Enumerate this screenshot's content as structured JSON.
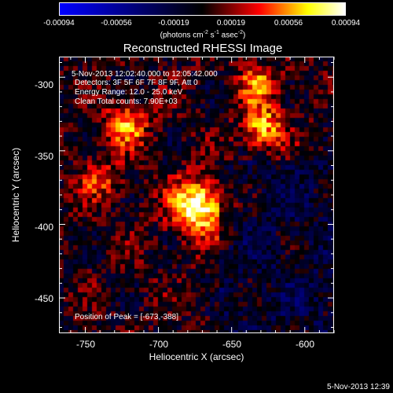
{
  "colorbar": {
    "tick_labels": [
      "-0.00094",
      "-0.00056",
      "-0.00019",
      "0.00019",
      "0.00056",
      "0.00094"
    ],
    "units_main": "(photons cm",
    "units_exp1": "-2",
    "units_mid1": " s",
    "units_exp2": "-1",
    "units_mid2": " asec",
    "units_exp3": "-2",
    "units_end": ")"
  },
  "chart_data": {
    "type": "heatmap",
    "title": "Reconstructed RHESSI Image",
    "xlabel": "Heliocentric X (arcsec)",
    "ylabel": "Heliocentric Y (arcsec)",
    "x_ticks": [
      "-750",
      "-700",
      "-650",
      "-600"
    ],
    "y_ticks": [
      "-300",
      "-350",
      "-400",
      "-450"
    ],
    "xlim": [
      -768,
      -580
    ],
    "ylim": [
      -474,
      -286
    ],
    "colorbar_range": [
      -0.00094,
      0.00094
    ],
    "colormap": [
      "#0000ff",
      "#000000",
      "#ff0000",
      "#ffff00",
      "#ffffff"
    ],
    "peak_position": [
      -673,
      -388
    ],
    "sources": [
      {
        "x": -673,
        "y": -388,
        "amplitude": 0.00094
      },
      {
        "x": -722,
        "y": -333,
        "amplitude": 0.00062
      },
      {
        "x": -629,
        "y": -334,
        "amplitude": 0.00066
      },
      {
        "x": -632,
        "y": -305,
        "amplitude": 0.00045
      },
      {
        "x": -740,
        "y": -370,
        "amplitude": 0.00035
      }
    ]
  },
  "info": {
    "time_range": "5-Nov-2013 12:02:40.000 to 12:05:42.000",
    "detectors": "Detectors: 3F 5F 6F 7F 8F 9F, Att 0",
    "energy": "Energy Range: 12.0 - 25.0 keV",
    "clean": "Clean    Total counts: 7.90E+03",
    "peak": "Position of Peak = [-673,-388]"
  },
  "timestamp": "5-Nov-2013 12:39"
}
